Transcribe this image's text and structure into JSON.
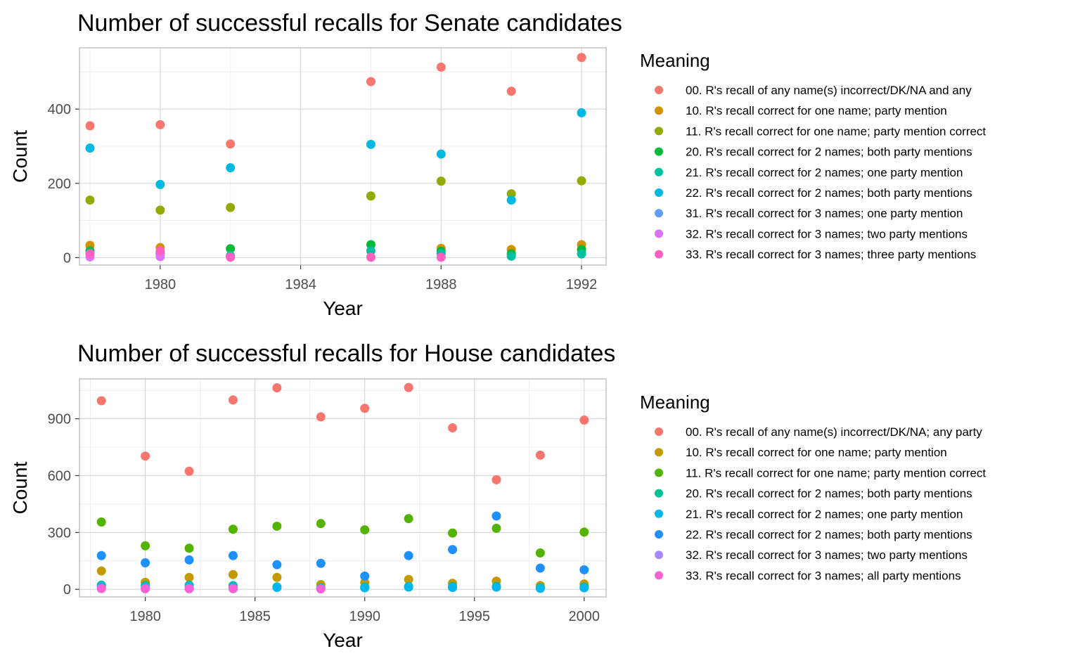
{
  "chart_data": [
    {
      "type": "scatter",
      "title": "Number of successful recalls for Senate candidates",
      "xlabel": "Year",
      "ylabel": "Count",
      "xlim": [
        1977.7,
        1992.7
      ],
      "ylim": [
        -20,
        565
      ],
      "x_ticks": [
        1980,
        1984,
        1988,
        1992
      ],
      "y_ticks": [
        0,
        200,
        400
      ],
      "grid": true,
      "legend_title": "Meaning",
      "legend_position": "right",
      "series": [
        {
          "name": "00. R's recall of any name(s) incorrect/DK/NA and any",
          "color": "#F8766D",
          "points": [
            [
              1978,
              355
            ],
            [
              1980,
              358
            ],
            [
              1982,
              306
            ],
            [
              1986,
              474
            ],
            [
              1988,
              513
            ],
            [
              1990,
              448
            ],
            [
              1992,
              539
            ]
          ]
        },
        {
          "name": "10. R's recall correct for one name; party mention",
          "color": "#D39200",
          "points": [
            [
              1978,
              33
            ],
            [
              1980,
              27
            ],
            [
              1988,
              25
            ],
            [
              1990,
              22
            ],
            [
              1992,
              35
            ]
          ]
        },
        {
          "name": "11. R's recall correct for one name; party mention correct",
          "color": "#93AA00",
          "points": [
            [
              1978,
              155
            ],
            [
              1980,
              128
            ],
            [
              1982,
              135
            ],
            [
              1986,
              166
            ],
            [
              1988,
              206
            ],
            [
              1990,
              172
            ],
            [
              1992,
              207
            ]
          ]
        },
        {
          "name": "20. R's recall correct for 2 names; both party mentions",
          "color": "#00BA38",
          "points": [
            [
              1978,
              18
            ],
            [
              1980,
              15
            ],
            [
              1982,
              24
            ],
            [
              1986,
              35
            ],
            [
              1988,
              17
            ],
            [
              1990,
              10
            ],
            [
              1992,
              22
            ]
          ]
        },
        {
          "name": "21. R's recall correct for 2 names; one party mention",
          "color": "#00C19F",
          "points": [
            [
              1978,
              12
            ],
            [
              1980,
              10
            ],
            [
              1982,
              5
            ],
            [
              1986,
              18
            ],
            [
              1988,
              11
            ],
            [
              1990,
              4
            ],
            [
              1992,
              10
            ]
          ]
        },
        {
          "name": "22. R's recall correct for 2 names; both party mentions",
          "color": "#00B9E3",
          "points": [
            [
              1978,
              295
            ],
            [
              1980,
              197
            ],
            [
              1982,
              242
            ],
            [
              1986,
              305
            ],
            [
              1988,
              279
            ],
            [
              1990,
              155
            ],
            [
              1992,
              390
            ]
          ]
        },
        {
          "name": "31. R's recall correct for 3 names; one party mention",
          "color": "#619CFF",
          "points": [
            [
              1980,
              5
            ]
          ]
        },
        {
          "name": "32. R's recall correct for 3 names; two party mentions",
          "color": "#DB72FB",
          "points": [
            [
              1978,
              2
            ],
            [
              1980,
              3
            ],
            [
              1982,
              1
            ]
          ]
        },
        {
          "name": "33. R's recall correct for 3 names; three party mentions",
          "color": "#FF61C3",
          "points": [
            [
              1978,
              10
            ],
            [
              1980,
              18
            ],
            [
              1982,
              2
            ],
            [
              1986,
              1
            ],
            [
              1988,
              1
            ]
          ]
        }
      ]
    },
    {
      "type": "scatter",
      "title": "Number of successful recalls for House candidates",
      "xlabel": "Year",
      "ylabel": "Count",
      "xlim": [
        1977,
        2001
      ],
      "ylim": [
        -40,
        1110
      ],
      "x_ticks": [
        1980,
        1985,
        1990,
        1995,
        2000
      ],
      "y_ticks": [
        0,
        300,
        600,
        900
      ],
      "grid": true,
      "legend_title": "Meaning",
      "legend_position": "right",
      "series": [
        {
          "name": "00. R's recall of any name(s) incorrect/DK/NA; any party",
          "color": "#F8766D",
          "points": [
            [
              1978,
              995
            ],
            [
              1980,
              703
            ],
            [
              1982,
              623
            ],
            [
              1984,
              999
            ],
            [
              1986,
              1063
            ],
            [
              1988,
              910
            ],
            [
              1990,
              955
            ],
            [
              1992,
              1065
            ],
            [
              1994,
              852
            ],
            [
              1996,
              578
            ],
            [
              1998,
              708
            ],
            [
              2000,
              893
            ]
          ]
        },
        {
          "name": "10. R's recall correct for one name; party mention",
          "color": "#C49A00",
          "points": [
            [
              1978,
              97
            ],
            [
              1980,
              37
            ],
            [
              1982,
              63
            ],
            [
              1984,
              78
            ],
            [
              1986,
              63
            ],
            [
              1988,
              25
            ],
            [
              1990,
              35
            ],
            [
              1992,
              52
            ],
            [
              1994,
              32
            ],
            [
              1996,
              43
            ],
            [
              1998,
              20
            ],
            [
              2000,
              28
            ]
          ]
        },
        {
          "name": "11. R's recall correct for one name; party mention correct",
          "color": "#53B400",
          "points": [
            [
              1978,
              355
            ],
            [
              1980,
              230
            ],
            [
              1982,
              217
            ],
            [
              1984,
              317
            ],
            [
              1986,
              333
            ],
            [
              1988,
              347
            ],
            [
              1990,
              314
            ],
            [
              1992,
              373
            ],
            [
              1994,
              297
            ],
            [
              1996,
              322
            ],
            [
              1998,
              192
            ],
            [
              2000,
              302
            ]
          ]
        },
        {
          "name": "20. R's recall correct for 2 names; both party mentions",
          "color": "#00C094",
          "points": [
            [
              1978,
              22
            ],
            [
              1980,
              20
            ],
            [
              1982,
              22
            ],
            [
              1984,
              20
            ],
            [
              1986,
              13
            ],
            [
              1988,
              8
            ],
            [
              1990,
              12
            ],
            [
              1992,
              15
            ],
            [
              1994,
              14
            ],
            [
              1996,
              15
            ],
            [
              1998,
              8
            ],
            [
              2000,
              12
            ]
          ]
        },
        {
          "name": "21. R's recall correct for 2 names; one party mention",
          "color": "#00B6EB",
          "points": [
            [
              1978,
              15
            ],
            [
              1980,
              12
            ],
            [
              1982,
              15
            ],
            [
              1984,
              12
            ],
            [
              1986,
              10
            ],
            [
              1988,
              6
            ],
            [
              1990,
              8
            ],
            [
              1992,
              12
            ],
            [
              1994,
              10
            ],
            [
              1996,
              12
            ],
            [
              1998,
              5
            ],
            [
              2000,
              8
            ]
          ]
        },
        {
          "name": "22. R's recall correct for 2 names; both party mentions",
          "color": "#1E90FF",
          "points": [
            [
              1978,
              178
            ],
            [
              1980,
              140
            ],
            [
              1982,
              155
            ],
            [
              1984,
              178
            ],
            [
              1986,
              130
            ],
            [
              1988,
              137
            ],
            [
              1990,
              70
            ],
            [
              1992,
              178
            ],
            [
              1994,
              210
            ],
            [
              1996,
              387
            ],
            [
              1998,
              112
            ],
            [
              2000,
              103
            ]
          ]
        },
        {
          "name": "32. R's recall correct for 3 names; two party mentions",
          "color": "#A58AFF",
          "points": [
            [
              1978,
              4
            ],
            [
              1980,
              3
            ],
            [
              1982,
              3
            ],
            [
              1984,
              3
            ]
          ]
        },
        {
          "name": "33. R's recall correct for 3 names; all party mentions",
          "color": "#FB61D7",
          "points": [
            [
              1978,
              5
            ],
            [
              1980,
              4
            ],
            [
              1982,
              4
            ],
            [
              1984,
              5
            ],
            [
              1988,
              2
            ]
          ]
        }
      ]
    }
  ]
}
